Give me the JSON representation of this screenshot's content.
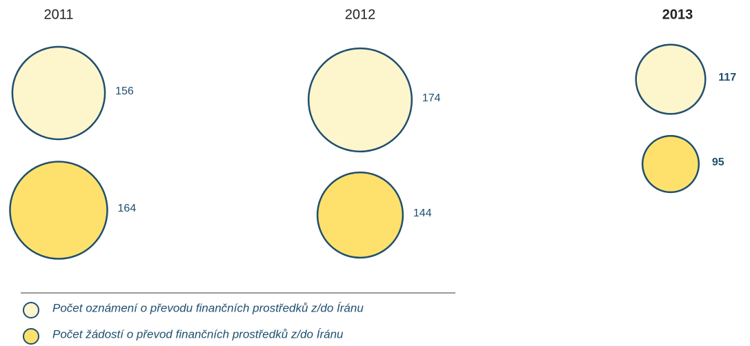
{
  "chart_data": {
    "type": "bubble",
    "categories": [
      "2011",
      "2012",
      "2013"
    ],
    "edgecolor": "#1f4e6e",
    "series": [
      {
        "name": "Počet oznámení o převodu finančních prostředků z/do Íránu",
        "color": "#fdf5cc",
        "values": [
          156,
          174,
          117
        ]
      },
      {
        "name": "Počet žádostí o převod finančních prostředků z/do Íránu",
        "color": "#fde16c",
        "values": [
          164,
          144,
          95
        ]
      }
    ]
  }
}
